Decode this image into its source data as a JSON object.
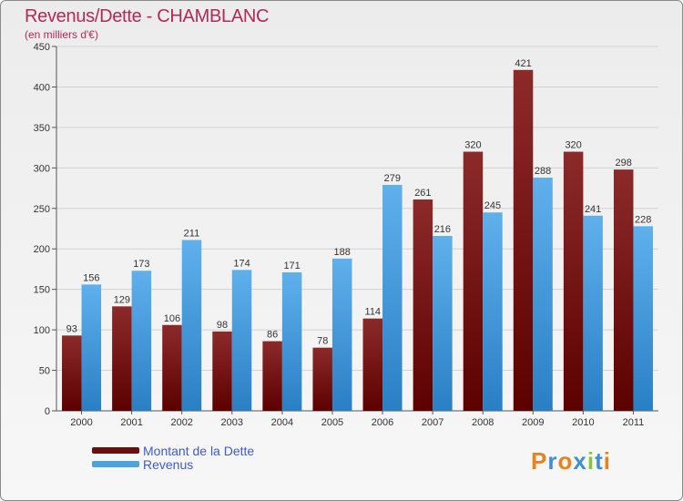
{
  "chart_data": {
    "type": "bar",
    "title": "Revenus/Dette - CHAMBLANC",
    "subtitle": "(en milliers d'€)",
    "categories": [
      "2000",
      "2001",
      "2002",
      "2003",
      "2004",
      "2005",
      "2006",
      "2007",
      "2008",
      "2009",
      "2010",
      "2011"
    ],
    "series": [
      {
        "name": "Montant de la Dette",
        "color": "#7a1414",
        "values": [
          93,
          129,
          106,
          98,
          86,
          78,
          114,
          261,
          320,
          421,
          320,
          298
        ]
      },
      {
        "name": "Revenus",
        "color": "#4da3e0",
        "values": [
          156,
          173,
          211,
          174,
          171,
          188,
          279,
          216,
          245,
          288,
          241,
          228
        ]
      }
    ],
    "ylim": [
      0,
      450
    ],
    "yticks": [
      0,
      50,
      100,
      150,
      200,
      250,
      300,
      350,
      400,
      450
    ],
    "grid": true,
    "legend": "bottom-left"
  },
  "logo": {
    "letters": [
      "P",
      "r",
      "o",
      "x",
      "i",
      "t",
      "i"
    ]
  }
}
